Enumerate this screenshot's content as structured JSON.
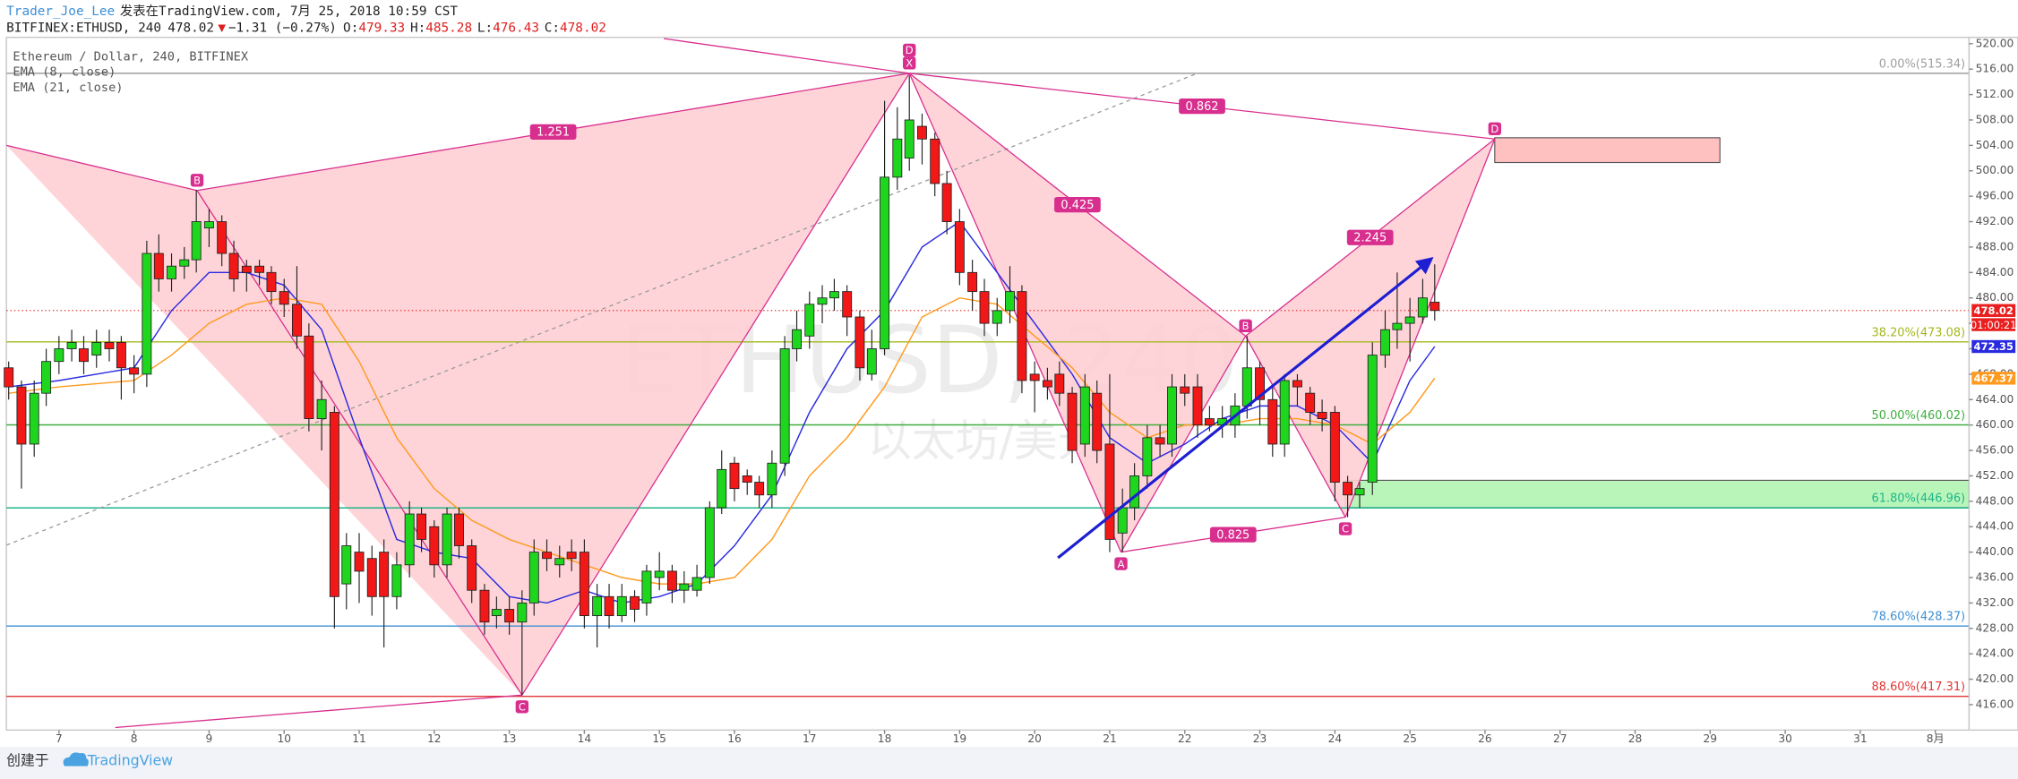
{
  "chart_data": {
    "type": "candlestick",
    "header": {
      "author": "Trader_Joe_Lee",
      "published": "发表在TradingView.com, 7月 25, 2018 10:59 CST",
      "symbol": "BITFINEX:ETHUSD, 240",
      "last": "478.02",
      "arrow": "▼",
      "change": "−1.31 (−0.27%)",
      "ohlc": [
        {
          "key": "O:",
          "value": "479.33"
        },
        {
          "key": "H:",
          "value": "485.28"
        },
        {
          "key": "L:",
          "value": "476.43"
        },
        {
          "key": "C:",
          "value": "478.02"
        }
      ]
    },
    "title": "Ethereum / Dollar, 240, BITFINEX",
    "watermark": "ETHUSD, 240",
    "watermark_sub": "以太坊/美元",
    "footer": {
      "created": "创建于",
      "brand": "TradingView"
    },
    "up_color": "#1fd61f",
    "down_color": "#f21818",
    "x": [
      6.33,
      6.5,
      6.67,
      6.83,
      7,
      7.17,
      7.33,
      7.5,
      7.67,
      7.83,
      8,
      8.17,
      8.33,
      8.5,
      8.67,
      8.83,
      9,
      9.17,
      9.33,
      9.5,
      9.67,
      9.83,
      10,
      10.17,
      10.33,
      10.5,
      10.67,
      10.83,
      11,
      11.17,
      11.33,
      11.5,
      11.67,
      11.83,
      12,
      12.17,
      12.33,
      12.5,
      12.67,
      12.83,
      13,
      13.17,
      13.33,
      13.5,
      13.67,
      13.83,
      14,
      14.17,
      14.33,
      14.5,
      14.67,
      14.83,
      15,
      15.17,
      15.33,
      15.5,
      15.67,
      15.83,
      16,
      16.17,
      16.33,
      16.5,
      16.67,
      16.83,
      17,
      17.17,
      17.33,
      17.5,
      17.67,
      17.83,
      18,
      18.17,
      18.33,
      18.5,
      18.67,
      18.83,
      19,
      19.17,
      19.33,
      19.5,
      19.67,
      19.83,
      20,
      20.17,
      20.33,
      20.5,
      20.67,
      20.83,
      21,
      21.17,
      21.33,
      21.5,
      21.67,
      21.83,
      22,
      22.17,
      22.33,
      22.5,
      22.67,
      22.83,
      23,
      23.17,
      23.33,
      23.5,
      23.67,
      23.83,
      24,
      24.17,
      24.33,
      24.5,
      24.67,
      24.83,
      25,
      25.17,
      25.33
    ],
    "open": [
      469,
      466,
      457,
      465,
      470,
      472,
      472,
      471,
      473,
      473,
      469,
      468,
      487,
      483,
      485,
      486,
      491,
      492,
      487,
      485,
      485,
      484,
      481,
      479,
      474,
      461,
      462,
      435,
      440,
      439,
      440,
      433,
      438,
      446,
      444,
      438,
      446,
      441,
      434,
      430,
      431,
      429,
      432,
      440,
      438,
      440,
      440,
      430,
      433,
      430,
      433,
      432,
      436,
      437,
      434,
      434,
      436,
      447,
      454,
      452,
      451,
      449,
      454,
      472,
      474,
      479,
      480,
      481,
      477,
      468,
      472,
      499,
      502,
      507,
      505,
      498,
      492,
      484,
      481,
      476,
      478,
      481,
      468,
      467,
      468,
      465,
      457,
      465,
      457,
      443,
      447,
      452,
      458,
      457,
      466,
      466,
      461,
      460,
      460,
      463,
      469,
      464,
      457,
      467,
      465,
      462,
      462,
      451,
      449,
      451,
      471,
      475,
      476,
      477,
      479.33
    ],
    "high": [
      470,
      467,
      467,
      472,
      474,
      475,
      474,
      475,
      475,
      474,
      471,
      489,
      490,
      487,
      488,
      497,
      494,
      493,
      489,
      486,
      486,
      485,
      483,
      485,
      476,
      467,
      463,
      443,
      443,
      441,
      442,
      440,
      448,
      447,
      445,
      447,
      447,
      442,
      435,
      433,
      433,
      434,
      442,
      442,
      441,
      442,
      442,
      435,
      435,
      435,
      434,
      438,
      440,
      438,
      437,
      438,
      448,
      456,
      455,
      453,
      452,
      456,
      474,
      478,
      481,
      482,
      483,
      482,
      478,
      475,
      511,
      510,
      515,
      509,
      506,
      500,
      494,
      486,
      483,
      480,
      485,
      482,
      470,
      469,
      470,
      466,
      468,
      467,
      468,
      450,
      454,
      460,
      460,
      468,
      468,
      468,
      463,
      463,
      465,
      474,
      470,
      466,
      468,
      468,
      466,
      464,
      463,
      452,
      451,
      473,
      478,
      484,
      480,
      483,
      485.28
    ],
    "low": [
      464,
      450,
      455,
      463,
      468,
      470,
      468,
      469,
      470,
      464,
      465,
      466,
      481,
      481,
      483,
      484,
      488,
      485,
      481,
      481,
      482,
      479,
      477,
      472,
      459,
      456,
      428,
      431,
      432,
      430,
      425,
      431,
      436,
      440,
      436,
      436,
      439,
      432,
      427,
      428,
      427,
      417.5,
      430,
      437,
      436,
      437,
      428,
      425,
      428,
      429,
      429,
      430,
      434,
      432,
      432,
      433,
      435,
      446,
      448,
      449,
      447,
      447,
      452,
      470,
      472,
      476,
      478,
      474,
      467,
      467,
      471,
      497,
      500,
      501,
      496,
      490,
      482,
      478,
      474,
      474,
      476,
      465,
      462,
      464,
      463,
      454,
      455,
      454,
      440,
      440,
      445,
      450,
      455,
      455,
      463,
      458,
      459,
      458,
      458,
      461,
      460,
      455,
      455,
      463,
      460,
      459,
      448,
      445.5,
      447,
      449,
      469,
      472,
      470,
      476,
      476.43
    ],
    "close": [
      466,
      457,
      465,
      470,
      472,
      473,
      470,
      473,
      472,
      469,
      468,
      487,
      483,
      485,
      486,
      492,
      492,
      487,
      483,
      484,
      484,
      481,
      479,
      474,
      461,
      464,
      433,
      441,
      437,
      433,
      433,
      438,
      446,
      442,
      438,
      446,
      441,
      434,
      429,
      431,
      429,
      432,
      440,
      439,
      439,
      439,
      430,
      433,
      430,
      433,
      431,
      437,
      437,
      434,
      435,
      436,
      447,
      453,
      450,
      451,
      449,
      454,
      472,
      475,
      479,
      480,
      481,
      477,
      469,
      472,
      499,
      505,
      508,
      505,
      498,
      492,
      484,
      481,
      476,
      478,
      481,
      467,
      467,
      466,
      465,
      456,
      466,
      456,
      442,
      447,
      452,
      458,
      457,
      466,
      465,
      460,
      460,
      461,
      463,
      469,
      464,
      457,
      467,
      466,
      462,
      461,
      451,
      449,
      450,
      471,
      475,
      476,
      477,
      480,
      478.02
    ],
    "ema": {
      "x": [
        6.33,
        7,
        8,
        8.5,
        9,
        9.5,
        10,
        10.5,
        11,
        11.5,
        12,
        12.5,
        13,
        13.5,
        14,
        14.5,
        15,
        15.5,
        16,
        16.5,
        17,
        17.5,
        18,
        18.5,
        19,
        19.5,
        20,
        20.5,
        21,
        21.5,
        22,
        22.5,
        23,
        23.5,
        24,
        24.5,
        25,
        25.33
      ],
      "series": [
        {
          "name": "EMA (8, close)",
          "color": "#2a2ae0",
          "values": [
            466,
            467,
            469,
            478,
            484,
            484,
            482,
            475,
            458,
            442,
            440,
            439,
            433,
            432,
            434,
            432,
            433,
            435,
            441,
            449,
            462,
            472,
            478,
            488,
            492,
            484,
            476,
            468,
            458,
            454,
            457,
            461,
            463,
            463,
            460,
            454,
            467,
            472.35
          ]
        },
        {
          "name": "EMA (21, close)",
          "color": "#ff9a1f",
          "values": [
            465,
            466,
            467,
            471,
            476,
            479,
            480,
            479,
            470,
            458,
            450,
            445,
            442,
            440,
            438,
            436,
            435,
            435,
            436,
            442,
            452,
            458,
            466,
            477,
            480,
            479,
            474,
            469,
            462,
            458,
            460,
            460,
            461,
            461,
            460,
            457,
            462,
            467.37
          ]
        }
      ]
    },
    "xlim": [
      6.3,
      32.45
    ],
    "ylim": [
      412,
      521
    ],
    "xticks": [
      7,
      8,
      9,
      10,
      11,
      12,
      13,
      14,
      15,
      16,
      17,
      18,
      19,
      20,
      21,
      22,
      23,
      24,
      25,
      26,
      27,
      28,
      29,
      30,
      31,
      {
        "value": 32,
        "label": "8月"
      }
    ],
    "yticks": [
      {
        "value": 416,
        "label": "416.00"
      },
      {
        "value": 420,
        "label": "420.00"
      },
      {
        "value": 424,
        "label": "424.00"
      },
      {
        "value": 428,
        "label": "428.00"
      },
      {
        "value": 432,
        "label": "432.00"
      },
      {
        "value": 436,
        "label": "436.00"
      },
      {
        "value": 440,
        "label": "440.00"
      },
      {
        "value": 444,
        "label": "444.00"
      },
      {
        "value": 448,
        "label": "448.00"
      },
      {
        "value": 452,
        "label": "452.00"
      },
      {
        "value": 456,
        "label": "456.00"
      },
      {
        "value": 460,
        "label": "460.00"
      },
      {
        "value": 464,
        "label": "464.00"
      },
      {
        "value": 468,
        "label": "468.00"
      },
      {
        "value": 472,
        "label": "472.00"
      },
      {
        "value": 476,
        "label": "476.00"
      },
      {
        "value": 480,
        "label": "480.00"
      },
      {
        "value": 484,
        "label": "484.00"
      },
      {
        "value": 488,
        "label": "488.00"
      },
      {
        "value": 492,
        "label": "492.00"
      },
      {
        "value": 496,
        "label": "496.00"
      },
      {
        "value": 500,
        "label": "500.00"
      },
      {
        "value": 504,
        "label": "504.00"
      },
      {
        "value": 508,
        "label": "508.00"
      },
      {
        "value": 512,
        "label": "512.00"
      },
      {
        "value": 516,
        "label": "516.00"
      },
      {
        "value": 520,
        "label": "520.00"
      }
    ],
    "grid": false,
    "levels": [
      {
        "label": "0.00%(515.34)",
        "value": 515.34,
        "color": "#9e9e9e"
      },
      {
        "label": "38.20%(473.08)",
        "value": 473.08,
        "color": "#a4b81c"
      },
      {
        "label": "50.00%(460.02)",
        "value": 460.02,
        "color": "#3fae3f"
      },
      {
        "label": "61.80%(446.96)",
        "value": 446.96,
        "color": "#1fb58a"
      },
      {
        "label": "78.60%(428.37)",
        "value": 428.37,
        "color": "#3f8fd2"
      },
      {
        "label": "88.60%(417.31)",
        "value": 417.31,
        "color": "#e03434"
      }
    ],
    "last_price": {
      "value": 478.02,
      "color": "#e32020"
    },
    "price_tags": [
      {
        "value": 478.02,
        "label": "478.02",
        "color": "#e91e1e"
      },
      {
        "value": 472.35,
        "label": "472.35",
        "color": "#2a2ae0"
      },
      {
        "value": 467.37,
        "label": "467.37",
        "color": "#ff9a1f"
      }
    ],
    "countdown": "01:00:21",
    "zones": [
      {
        "x": [
          26.13,
          29.13
        ],
        "price": [
          505.2,
          501.3
        ],
        "color": "#ffc0c0"
      },
      {
        "x": [
          24.14,
          32.45
        ],
        "price": [
          451.3,
          447
        ],
        "color": "#b9f5b9"
      }
    ],
    "trend_line": {
      "x": [
        6.3,
        22.16
      ],
      "price": [
        441.1,
        515.3
      ],
      "color": "#999999"
    },
    "arrow": {
      "x": [
        20.31,
        25.28
      ],
      "price": [
        439.1,
        486.1
      ],
      "color": "#1e1ed2"
    },
    "pattern_color": "#d82f8e",
    "pattern_fill": "#ffcfd4",
    "patterns": [
      {
        "areas": [
          [
            [
              6.3,
              504
            ],
            [
              8.84,
              496.9
            ],
            [
              13.17,
              417.5
            ]
          ],
          [
            [
              8.84,
              496.9
            ],
            [
              13.17,
              417.5
            ],
            [
              18.33,
              515.34
            ]
          ]
        ],
        "lines": [
          {
            "from": [
              6.3,
              504
            ],
            "to": [
              8.84,
              496.9
            ]
          },
          {
            "from": [
              8.84,
              496.9
            ],
            "to": [
              13.17,
              417.5
            ]
          },
          {
            "from": [
              13.17,
              417.5
            ],
            "to": [
              18.33,
              515.34
            ]
          },
          {
            "from": [
              8.84,
              496.9
            ],
            "to": [
              18.33,
              515.34
            ],
            "label": "1.251"
          },
          {
            "from": [
              15.06,
              520.8
            ],
            "to": [
              18.33,
              515.34
            ]
          },
          {
            "from": [
              7.75,
              412.4
            ],
            "to": [
              13.17,
              417.5
            ]
          }
        ],
        "points": [
          {
            "x": 8.84,
            "price": 496.9,
            "label": "B"
          },
          {
            "x": 13.17,
            "price": 417.5,
            "label": "C"
          },
          {
            "x": 18.33,
            "price": 515.34,
            "label": "D"
          }
        ]
      },
      {
        "areas": [
          [
            [
              18.33,
              515.34
            ],
            [
              21.15,
              440
            ],
            [
              22.81,
              474
            ]
          ],
          [
            [
              22.81,
              474
            ],
            [
              24.14,
              445.5
            ],
            [
              26.13,
              505
            ]
          ]
        ],
        "lines": [
          {
            "from": [
              18.33,
              515.34
            ],
            "to": [
              21.15,
              440
            ]
          },
          {
            "from": [
              21.15,
              440
            ],
            "to": [
              22.81,
              474
            ]
          },
          {
            "from": [
              18.33,
              515.34
            ],
            "to": [
              22.81,
              474
            ],
            "label": "0.425"
          },
          {
            "from": [
              22.81,
              474
            ],
            "to": [
              24.14,
              445.5
            ]
          },
          {
            "from": [
              24.14,
              445.5
            ],
            "to": [
              26.13,
              505
            ]
          },
          {
            "from": [
              22.81,
              474
            ],
            "to": [
              26.13,
              505
            ],
            "label": "2.245"
          },
          {
            "from": [
              18.33,
              515.34
            ],
            "to": [
              26.13,
              505
            ],
            "label": "0.862"
          },
          {
            "from": [
              21.15,
              440
            ],
            "to": [
              24.14,
              445.5
            ],
            "label": "0.825"
          }
        ],
        "points": [
          {
            "x": 18.33,
            "price": 515.34,
            "label": "X"
          },
          {
            "x": 21.15,
            "price": 440,
            "label": "A"
          },
          {
            "x": 22.81,
            "price": 474,
            "label": "B"
          },
          {
            "x": 24.14,
            "price": 445.5,
            "label": "C"
          },
          {
            "x": 26.13,
            "price": 505,
            "label": "D"
          }
        ]
      }
    ]
  }
}
